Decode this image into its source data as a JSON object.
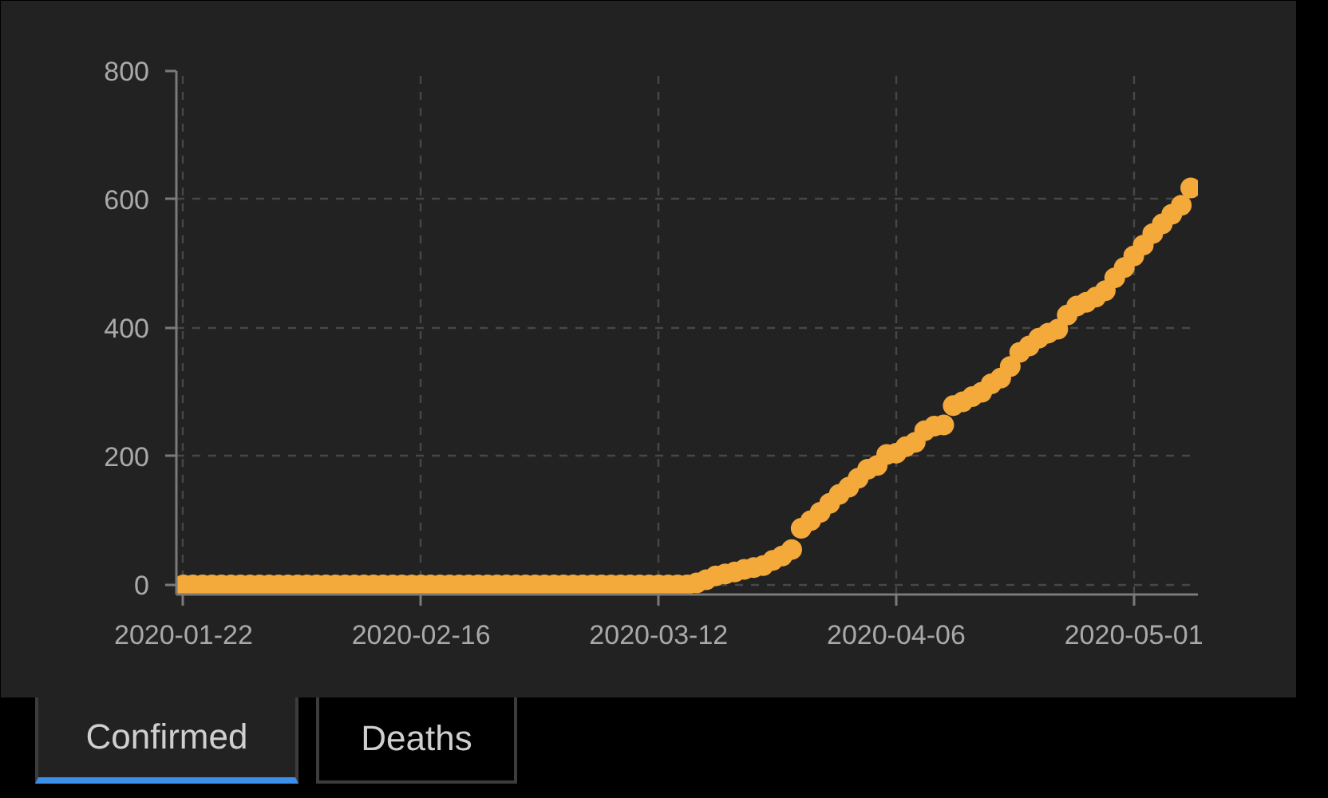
{
  "chart_data": {
    "type": "scatter",
    "marker": "circle",
    "color": "#f4a93b",
    "x": [
      "2020-01-22",
      "2020-01-23",
      "2020-01-24",
      "2020-01-25",
      "2020-01-26",
      "2020-01-27",
      "2020-01-28",
      "2020-01-29",
      "2020-01-30",
      "2020-01-31",
      "2020-02-01",
      "2020-02-02",
      "2020-02-03",
      "2020-02-04",
      "2020-02-05",
      "2020-02-06",
      "2020-02-07",
      "2020-02-08",
      "2020-02-09",
      "2020-02-10",
      "2020-02-11",
      "2020-02-12",
      "2020-02-13",
      "2020-02-14",
      "2020-02-15",
      "2020-02-16",
      "2020-02-17",
      "2020-02-18",
      "2020-02-19",
      "2020-02-20",
      "2020-02-21",
      "2020-02-22",
      "2020-02-23",
      "2020-02-24",
      "2020-02-25",
      "2020-02-26",
      "2020-02-27",
      "2020-02-28",
      "2020-02-29",
      "2020-03-01",
      "2020-03-02",
      "2020-03-03",
      "2020-03-04",
      "2020-03-05",
      "2020-03-06",
      "2020-03-07",
      "2020-03-08",
      "2020-03-09",
      "2020-03-10",
      "2020-03-11",
      "2020-03-12",
      "2020-03-13",
      "2020-03-14",
      "2020-03-15",
      "2020-03-16",
      "2020-03-17",
      "2020-03-18",
      "2020-03-19",
      "2020-03-20",
      "2020-03-21",
      "2020-03-22",
      "2020-03-23",
      "2020-03-24",
      "2020-03-25",
      "2020-03-26",
      "2020-03-27",
      "2020-03-28",
      "2020-03-29",
      "2020-03-30",
      "2020-03-31",
      "2020-04-01",
      "2020-04-02",
      "2020-04-03",
      "2020-04-04",
      "2020-04-05",
      "2020-04-06",
      "2020-04-07",
      "2020-04-08",
      "2020-04-09",
      "2020-04-10",
      "2020-04-11",
      "2020-04-12",
      "2020-04-13",
      "2020-04-14",
      "2020-04-15",
      "2020-04-16",
      "2020-04-17",
      "2020-04-18",
      "2020-04-19",
      "2020-04-20",
      "2020-04-21",
      "2020-04-22",
      "2020-04-23",
      "2020-04-24",
      "2020-04-25",
      "2020-04-26",
      "2020-04-27",
      "2020-04-28",
      "2020-04-29",
      "2020-04-30",
      "2020-05-01",
      "2020-05-02",
      "2020-05-03",
      "2020-05-04",
      "2020-05-05",
      "2020-05-06",
      "2020-05-07"
    ],
    "values": [
      0,
      0,
      0,
      0,
      0,
      0,
      0,
      0,
      0,
      0,
      0,
      0,
      0,
      0,
      0,
      0,
      0,
      0,
      0,
      0,
      0,
      0,
      0,
      0,
      0,
      0,
      0,
      0,
      0,
      0,
      0,
      0,
      0,
      0,
      0,
      0,
      0,
      0,
      0,
      0,
      0,
      0,
      0,
      0,
      0,
      0,
      0,
      0,
      0,
      0,
      0,
      0,
      0,
      0,
      3,
      8,
      14,
      17,
      20,
      24,
      27,
      30,
      38,
      45,
      55,
      88,
      100,
      113,
      127,
      141,
      152,
      166,
      180,
      186,
      203,
      205,
      215,
      222,
      240,
      247,
      249,
      279,
      285,
      293,
      300,
      313,
      322,
      340,
      362,
      372,
      384,
      392,
      398,
      420,
      434,
      440,
      448,
      458,
      478,
      494,
      512,
      529,
      547,
      562,
      577,
      591,
      618
    ],
    "xlim": [
      "2020-01-21T06:00",
      "2020-05-07T18:00"
    ],
    "ylim": [
      -15,
      800
    ],
    "xticks": [
      "2020-01-22",
      "2020-02-16",
      "2020-03-12",
      "2020-04-06",
      "2020-05-01"
    ],
    "yticks": [
      0,
      200,
      400,
      600,
      800
    ],
    "grid": true,
    "annotations": [
      "Confirmed",
      "Deaths"
    ]
  }
}
